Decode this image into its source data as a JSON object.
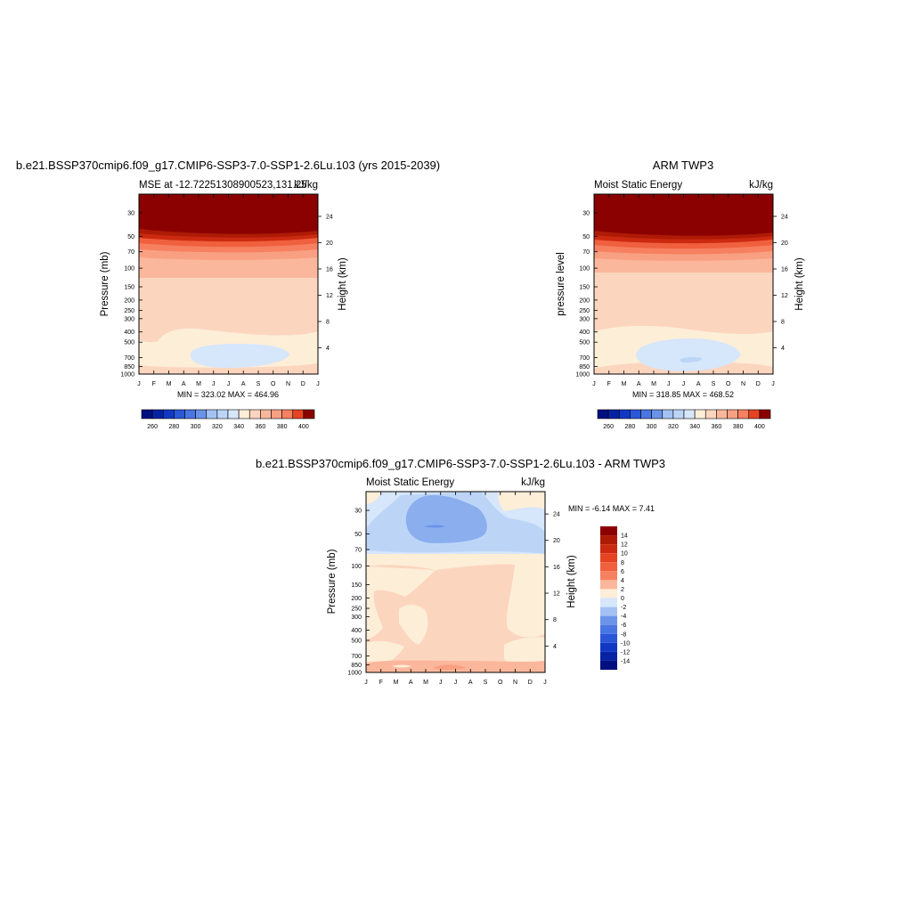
{
  "chart_data": [
    {
      "type": "heatmap",
      "title": "b.e21.BSSP370cmip6.f09_g17.CMIP6-SSP3-7.0-SSP1-2.6Lu.103 (yrs 2015-2039)",
      "left_string": "MSE at -12.72251308900523,131.25",
      "right_string": "kJ/kg",
      "ylabel": "Pressure (mb)",
      "ylabel_right": "Height (km)",
      "x_ticks": [
        "J",
        "F",
        "M",
        "A",
        "M",
        "J",
        "J",
        "A",
        "S",
        "O",
        "N",
        "D",
        "J"
      ],
      "y_ticks": [
        30,
        50,
        70,
        100,
        150,
        200,
        250,
        300,
        400,
        500,
        700,
        850,
        1000
      ],
      "y_ticks_right": [
        24,
        20,
        16,
        12,
        8,
        4
      ],
      "ylim": [
        1000,
        20
      ],
      "min_max_text": "MIN = 323.02 MAX = 464.96",
      "min": 323.02,
      "max": 464.96,
      "colorbar_labels": [
        "260",
        "280",
        "300",
        "320",
        "340",
        "360",
        "380",
        "400"
      ],
      "colorbar_levels": [
        250,
        260,
        270,
        280,
        290,
        300,
        310,
        320,
        330,
        340,
        350,
        360,
        370,
        380,
        390,
        400,
        410
      ]
    },
    {
      "type": "heatmap",
      "title": "ARM TWP3",
      "left_string": "Moist Static Energy",
      "right_string": "kJ/kg",
      "ylabel": "pressure level",
      "ylabel_right": "Height (km)",
      "x_ticks": [
        "J",
        "F",
        "M",
        "A",
        "M",
        "J",
        "J",
        "A",
        "S",
        "O",
        "N",
        "D",
        "J"
      ],
      "y_ticks": [
        30,
        50,
        70,
        100,
        150,
        200,
        250,
        300,
        400,
        500,
        700,
        850,
        1000
      ],
      "y_ticks_right": [
        24,
        20,
        16,
        12,
        8,
        4
      ],
      "ylim": [
        1000,
        20
      ],
      "min_max_text": "MIN = 318.85 MAX = 468.52",
      "min": 318.85,
      "max": 468.52,
      "colorbar_labels": [
        "260",
        "280",
        "300",
        "320",
        "340",
        "360",
        "380",
        "400"
      ],
      "colorbar_levels": [
        250,
        260,
        270,
        280,
        290,
        300,
        310,
        320,
        330,
        340,
        350,
        360,
        370,
        380,
        390,
        400,
        410
      ]
    },
    {
      "type": "heatmap",
      "title": "b.e21.BSSP370cmip6.f09_g17.CMIP6-SSP3-7.0-SSP1-2.6Lu.103 - ARM TWP3",
      "left_string": "Moist Static Energy",
      "right_string": "kJ/kg",
      "ylabel": "Pressure (mb)",
      "ylabel_right": "Height (km)",
      "x_ticks": [
        "J",
        "F",
        "M",
        "A",
        "M",
        "J",
        "J",
        "A",
        "S",
        "O",
        "N",
        "D",
        "J"
      ],
      "y_ticks": [
        30,
        50,
        70,
        100,
        150,
        200,
        250,
        300,
        400,
        500,
        700,
        850,
        1000
      ],
      "y_ticks_right": [
        24,
        20,
        16,
        12,
        8,
        4
      ],
      "ylim": [
        1000,
        20
      ],
      "min_max_text": "MIN =  -6.14 MAX =   7.41",
      "min": -6.14,
      "max": 7.41,
      "colorbar_labels": [
        "14",
        "12",
        "10",
        "8",
        "6",
        "4",
        "2",
        "0",
        "-2",
        "-4",
        "-6",
        "-8",
        "-10",
        "-12",
        "-14"
      ],
      "colorbar_levels": [
        16,
        14,
        12,
        10,
        8,
        6,
        4,
        2,
        0,
        -2,
        -4,
        -6,
        -8,
        -10,
        -12,
        -14,
        -16
      ]
    }
  ],
  "colors": {
    "warm": [
      "#fdeed8",
      "#fcd5bf",
      "#fbb79b",
      "#f9a083",
      "#f68060",
      "#f0603e",
      "#e54322",
      "#cc2a10",
      "#ad1a06",
      "#8b0000"
    ],
    "cool": [
      "#d6e6fb",
      "#bcd5f7",
      "#a3c2f3",
      "#8aaeee",
      "#6b93e9",
      "#4a76e3",
      "#2a56d8",
      "#1238c3",
      "#0623a4",
      "#000f80"
    ]
  }
}
